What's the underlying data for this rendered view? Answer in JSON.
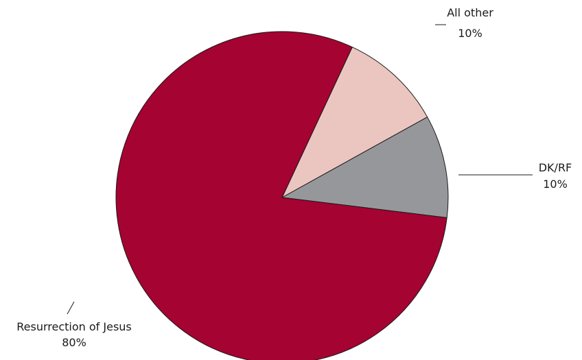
{
  "chart_data": {
    "type": "pie",
    "slices": [
      {
        "label": "Resurrection of Jesus",
        "value": 80,
        "value_label": "80%",
        "color": "#a50331"
      },
      {
        "label": "All other",
        "value": 10,
        "value_label": "10%",
        "color": "#ebc6c0"
      },
      {
        "label": "DK/RF",
        "value": 10,
        "value_label": "10%",
        "color": "#96979a"
      }
    ]
  }
}
